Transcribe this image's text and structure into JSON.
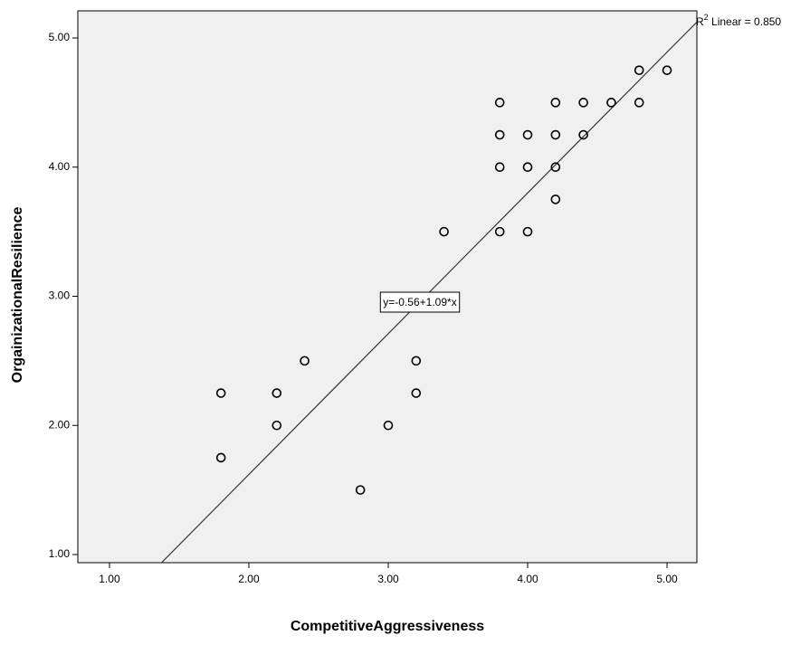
{
  "chart_data": {
    "type": "scatter",
    "x_label": "CompetitiveAggressiveness",
    "y_label": "OrgainizationalResilience",
    "x": [
      1.8,
      1.8,
      2.2,
      2.2,
      2.4,
      2.8,
      3.0,
      3.2,
      3.2,
      3.4,
      3.8,
      3.8,
      3.8,
      3.8,
      4.0,
      4.0,
      4.0,
      4.2,
      4.2,
      4.2,
      4.2,
      4.4,
      4.4,
      4.6,
      4.8,
      4.8,
      5.0
    ],
    "values": [
      2.25,
      1.75,
      2.25,
      2.0,
      2.5,
      1.5,
      2.0,
      2.5,
      2.25,
      3.5,
      4.5,
      4.25,
      4.0,
      3.5,
      4.25,
      4.0,
      3.5,
      4.5,
      4.25,
      4.0,
      3.75,
      4.5,
      4.25,
      4.5,
      4.75,
      4.5,
      4.75
    ],
    "xlim": [
      0.773,
      5.214
    ],
    "ylim": [
      0.937,
      5.21
    ],
    "xticks": [
      {
        "value": 1,
        "label": "1.00"
      },
      {
        "value": 2,
        "label": "2.00"
      },
      {
        "value": 3,
        "label": "3.00"
      },
      {
        "value": 4,
        "label": "4.00"
      },
      {
        "value": 5,
        "label": "5.00"
      }
    ],
    "yticks": [
      {
        "value": 1,
        "label": "1.00"
      },
      {
        "value": 2,
        "label": "2.00"
      },
      {
        "value": 3,
        "label": "3.00"
      },
      {
        "value": 4,
        "label": "4.00"
      },
      {
        "value": 5,
        "label": "5.00"
      }
    ],
    "fit": {
      "intercept": -0.56,
      "slope": 1.09,
      "label": "y=-0.56+1.09*x"
    },
    "r2_label": {
      "base": "R",
      "sup": "2",
      "rest": " Linear = 0.850"
    },
    "background": "#f0f0f0",
    "color": "#000000"
  }
}
